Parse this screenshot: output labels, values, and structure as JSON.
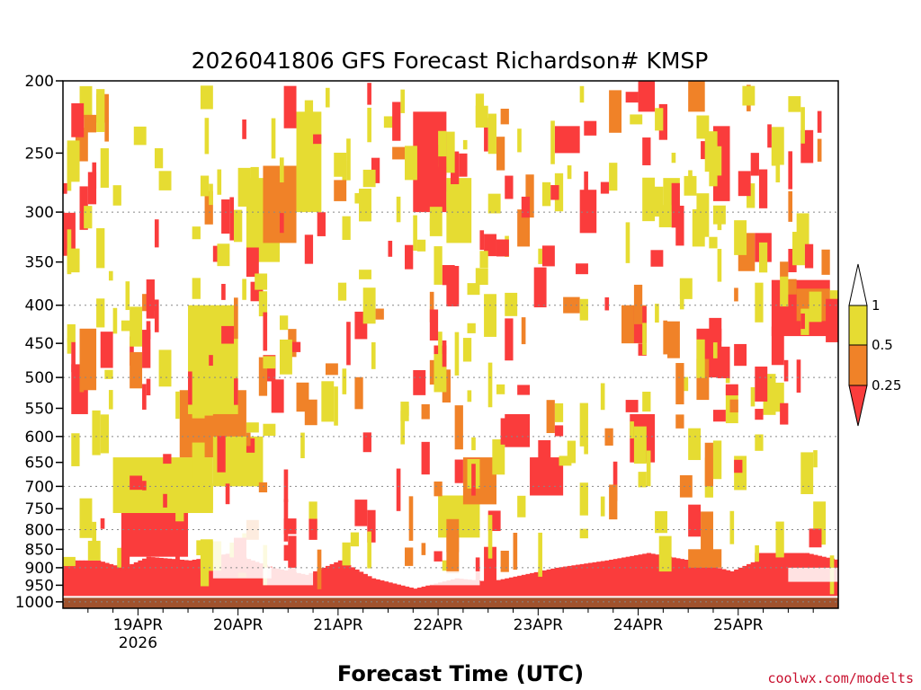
{
  "chart_data": {
    "type": "heatmap",
    "title": "2026041806 GFS Forecast Richardson# KMSP",
    "xlabel": "Forecast Time (UTC)",
    "ylabel": "",
    "x_ticks": [
      {
        "label": "19APR",
        "sublabel": "2026",
        "hours": 18
      },
      {
        "label": "20APR",
        "sublabel": "",
        "hours": 42
      },
      {
        "label": "21APR",
        "sublabel": "",
        "hours": 66
      },
      {
        "label": "22APR",
        "sublabel": "",
        "hours": 90
      },
      {
        "label": "23APR",
        "sublabel": "",
        "hours": 114
      },
      {
        "label": "24APR",
        "sublabel": "",
        "hours": 138
      },
      {
        "label": "25APR",
        "sublabel": "",
        "hours": 162
      }
    ],
    "xlim_hours": [
      0,
      186
    ],
    "y_scale": "log-pressure",
    "y_ticks": [
      200,
      250,
      300,
      350,
      400,
      450,
      500,
      550,
      600,
      650,
      700,
      750,
      800,
      850,
      900,
      950,
      1000
    ],
    "ylim_hPa": [
      1020,
      200
    ],
    "grid_pressure_levels": [
      300,
      400,
      500,
      600,
      700,
      800,
      900,
      1000
    ],
    "legend": {
      "placement": "right",
      "levels": [
        "1",
        "0.5",
        "0.25"
      ],
      "bins": [
        {
          "range": "> 1",
          "color": "#ffffff"
        },
        {
          "range": "0.5 - 1",
          "color": "#e6dc32"
        },
        {
          "range": "0.25 - 0.5",
          "color": "#f08228"
        },
        {
          "range": "< 0.25",
          "color": "#fa3c3c"
        }
      ]
    },
    "colors": {
      "yellow": "#e6dc32",
      "orange": "#f08228",
      "red": "#fa3c3c",
      "ground": "#a0522d"
    },
    "surface_pressure_hPa": 985,
    "regions": [
      {
        "t0": 0,
        "t1": 186,
        "p0": 985,
        "p1": 870,
        "color": "red",
        "note": "boundary layer"
      },
      {
        "t0": 14,
        "t1": 30,
        "p0": 870,
        "p1": 760,
        "color": "red"
      },
      {
        "t0": 12,
        "t1": 36,
        "p0": 760,
        "p1": 640,
        "color": "yellow"
      },
      {
        "t0": 28,
        "t1": 44,
        "p0": 640,
        "p1": 520,
        "color": "orange"
      },
      {
        "t0": 30,
        "t1": 42,
        "p0": 560,
        "p1": 400,
        "color": "yellow"
      },
      {
        "t0": 36,
        "t1": 48,
        "p0": 700,
        "p1": 600,
        "color": "yellow"
      },
      {
        "t0": 44,
        "t1": 52,
        "p0": 350,
        "p1": 270,
        "color": "yellow"
      },
      {
        "t0": 48,
        "t1": 56,
        "p0": 330,
        "p1": 260,
        "color": "orange"
      },
      {
        "t0": 56,
        "t1": 62,
        "p0": 300,
        "p1": 220,
        "color": "yellow"
      },
      {
        "t0": 2,
        "t1": 6,
        "p0": 560,
        "p1": 480,
        "color": "red"
      },
      {
        "t0": 4,
        "t1": 8,
        "p0": 520,
        "p1": 430,
        "color": "orange"
      },
      {
        "t0": 90,
        "t1": 100,
        "p0": 820,
        "p1": 720,
        "color": "yellow"
      },
      {
        "t0": 96,
        "t1": 104,
        "p0": 740,
        "p1": 640,
        "color": "orange"
      },
      {
        "t0": 106,
        "t1": 112,
        "p0": 620,
        "p1": 560,
        "color": "red"
      },
      {
        "t0": 112,
        "t1": 120,
        "p0": 720,
        "p1": 640,
        "color": "red"
      },
      {
        "t0": 84,
        "t1": 92,
        "p0": 300,
        "p1": 220,
        "color": "red"
      },
      {
        "t0": 92,
        "t1": 98,
        "p0": 330,
        "p1": 270,
        "color": "yellow"
      },
      {
        "t0": 118,
        "t1": 124,
        "p0": 250,
        "p1": 230,
        "color": "red"
      },
      {
        "t0": 124,
        "t1": 128,
        "p0": 320,
        "p1": 280,
        "color": "red"
      },
      {
        "t0": 138,
        "t1": 142,
        "p0": 220,
        "p1": 200,
        "color": "red"
      },
      {
        "t0": 150,
        "t1": 154,
        "p0": 220,
        "p1": 200,
        "color": "orange"
      },
      {
        "t0": 156,
        "t1": 160,
        "p0": 290,
        "p1": 230,
        "color": "red"
      },
      {
        "t0": 152,
        "t1": 158,
        "p0": 500,
        "p1": 430,
        "color": "red"
      },
      {
        "t0": 162,
        "t1": 166,
        "p0": 360,
        "p1": 320,
        "color": "orange"
      },
      {
        "t0": 166,
        "t1": 170,
        "p0": 350,
        "p1": 320,
        "color": "red"
      },
      {
        "t0": 170,
        "t1": 184,
        "p0": 440,
        "p1": 370,
        "color": "red"
      },
      {
        "t0": 176,
        "t1": 184,
        "p0": 420,
        "p1": 380,
        "color": "orange"
      },
      {
        "t0": 136,
        "t1": 142,
        "p0": 650,
        "p1": 560,
        "color": "red"
      },
      {
        "t0": 150,
        "t1": 158,
        "p0": 900,
        "p1": 850,
        "color": "orange"
      },
      {
        "t0": 166,
        "t1": 178,
        "p0": 900,
        "p1": 860,
        "color": "red"
      },
      {
        "t0": 134,
        "t1": 140,
        "p0": 450,
        "p1": 400,
        "color": "orange"
      },
      {
        "t0": 144,
        "t1": 148,
        "p0": 300,
        "p1": 270,
        "color": "yellow"
      },
      {
        "t0": 120,
        "t1": 124,
        "p0": 410,
        "p1": 390,
        "color": "orange"
      }
    ],
    "white_patches": [
      {
        "t0": 36,
        "t1": 50,
        "p0": 930,
        "p1": 760
      },
      {
        "t0": 48,
        "t1": 60,
        "p0": 950,
        "p1": 900
      },
      {
        "t0": 86,
        "t1": 100,
        "p0": 950,
        "p1": 910
      },
      {
        "t0": 174,
        "t1": 186,
        "p0": 940,
        "p1": 900
      }
    ],
    "bl_top_profile": [
      {
        "t": 0,
        "p": 880
      },
      {
        "t": 8,
        "p": 880
      },
      {
        "t": 14,
        "p": 900
      },
      {
        "t": 20,
        "p": 870
      },
      {
        "t": 30,
        "p": 880
      },
      {
        "t": 40,
        "p": 860
      },
      {
        "t": 50,
        "p": 900
      },
      {
        "t": 58,
        "p": 920
      },
      {
        "t": 66,
        "p": 880
      },
      {
        "t": 74,
        "p": 930
      },
      {
        "t": 84,
        "p": 960
      },
      {
        "t": 94,
        "p": 930
      },
      {
        "t": 102,
        "p": 940
      },
      {
        "t": 110,
        "p": 920
      },
      {
        "t": 118,
        "p": 900
      },
      {
        "t": 130,
        "p": 880
      },
      {
        "t": 140,
        "p": 860
      },
      {
        "t": 150,
        "p": 880
      },
      {
        "t": 160,
        "p": 910
      },
      {
        "t": 168,
        "p": 870
      },
      {
        "t": 178,
        "p": 860
      },
      {
        "t": 186,
        "p": 880
      }
    ],
    "scatter_cells_seed": 20260418
  },
  "credit": "coolwx.com/modelts"
}
